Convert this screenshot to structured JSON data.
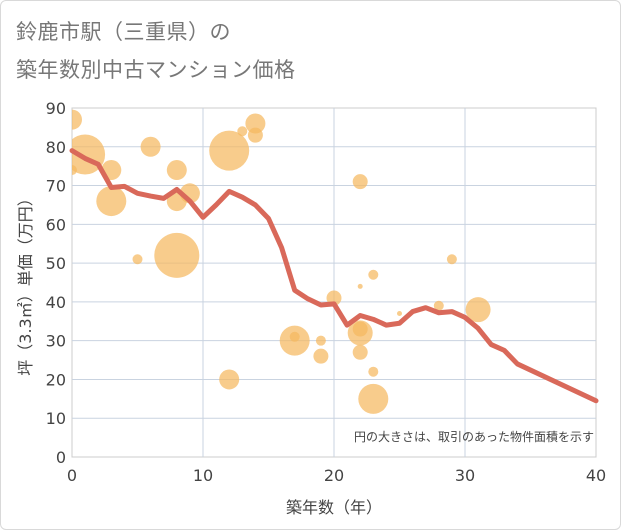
{
  "header": {
    "title_line1": "鈴鹿市駅（三重県）の",
    "title_line2": "築年数別中古マンション価格"
  },
  "colors": {
    "bubble": "#f5b95f",
    "line": "#d9695a",
    "grid": "#c9d3e0",
    "axis": "#cccccc"
  },
  "chart_data": {
    "type": "scatter",
    "title": "鈴鹿市駅（三重県）の築年数別中古マンション価格",
    "xlabel": "築年数（年）",
    "ylabel": "坪（3.3㎡）単価（万円）",
    "xlim": [
      0,
      40
    ],
    "ylim": [
      0,
      90
    ],
    "x_ticks": [
      "0",
      "10",
      "20",
      "30",
      "40"
    ],
    "y_ticks": [
      "0",
      "10",
      "20",
      "30",
      "40",
      "50",
      "60",
      "70",
      "80",
      "90"
    ],
    "grid": true,
    "note": "円の大きさは、取引のあった物件面積を示す",
    "bubbles": [
      {
        "x": 0,
        "y": 87,
        "size": 4
      },
      {
        "x": 0,
        "y": 74,
        "size": 2
      },
      {
        "x": 1,
        "y": 78,
        "size": 8
      },
      {
        "x": 3,
        "y": 74,
        "size": 4
      },
      {
        "x": 3,
        "y": 66,
        "size": 6
      },
      {
        "x": 5,
        "y": 51,
        "size": 2
      },
      {
        "x": 6,
        "y": 80,
        "size": 4
      },
      {
        "x": 8,
        "y": 74,
        "size": 4
      },
      {
        "x": 8,
        "y": 66,
        "size": 4
      },
      {
        "x": 9,
        "y": 68,
        "size": 4
      },
      {
        "x": 8,
        "y": 52,
        "size": 9
      },
      {
        "x": 12,
        "y": 79,
        "size": 8
      },
      {
        "x": 13,
        "y": 84,
        "size": 2
      },
      {
        "x": 14,
        "y": 86,
        "size": 4
      },
      {
        "x": 14,
        "y": 83,
        "size": 3
      },
      {
        "x": 12,
        "y": 20,
        "size": 4
      },
      {
        "x": 17,
        "y": 30,
        "size": 6
      },
      {
        "x": 17,
        "y": 31,
        "size": 2
      },
      {
        "x": 19,
        "y": 30,
        "size": 2
      },
      {
        "x": 19,
        "y": 26,
        "size": 3
      },
      {
        "x": 20,
        "y": 41,
        "size": 3
      },
      {
        "x": 22,
        "y": 71,
        "size": 3
      },
      {
        "x": 22,
        "y": 44,
        "size": 1
      },
      {
        "x": 22,
        "y": 32,
        "size": 5
      },
      {
        "x": 22,
        "y": 33,
        "size": 3
      },
      {
        "x": 22,
        "y": 27,
        "size": 3
      },
      {
        "x": 23,
        "y": 47,
        "size": 2
      },
      {
        "x": 23,
        "y": 22,
        "size": 2
      },
      {
        "x": 23,
        "y": 15,
        "size": 6
      },
      {
        "x": 25,
        "y": 37,
        "size": 1
      },
      {
        "x": 28,
        "y": 39,
        "size": 2
      },
      {
        "x": 29,
        "y": 51,
        "size": 2
      },
      {
        "x": 31,
        "y": 38,
        "size": 5
      }
    ],
    "trend_line": {
      "x": [
        0,
        1,
        2,
        3,
        4,
        5,
        6,
        7,
        8,
        9,
        10,
        11,
        12,
        13,
        14,
        15,
        16,
        17,
        18,
        19,
        20,
        21,
        22,
        23,
        24,
        25,
        26,
        27,
        28,
        29,
        30,
        31,
        32,
        33,
        34,
        40
      ],
      "y": [
        79,
        77,
        75.5,
        69.5,
        69.8,
        68,
        67.3,
        66.7,
        69,
        66,
        61.8,
        65,
        68.5,
        67,
        65,
        61.5,
        54,
        43,
        40.8,
        39.2,
        39.5,
        34,
        36.5,
        35.5,
        34,
        34.5,
        37.5,
        38.5,
        37.2,
        37.5,
        36,
        33.2,
        29,
        27.5,
        24,
        14.5
      ]
    }
  }
}
